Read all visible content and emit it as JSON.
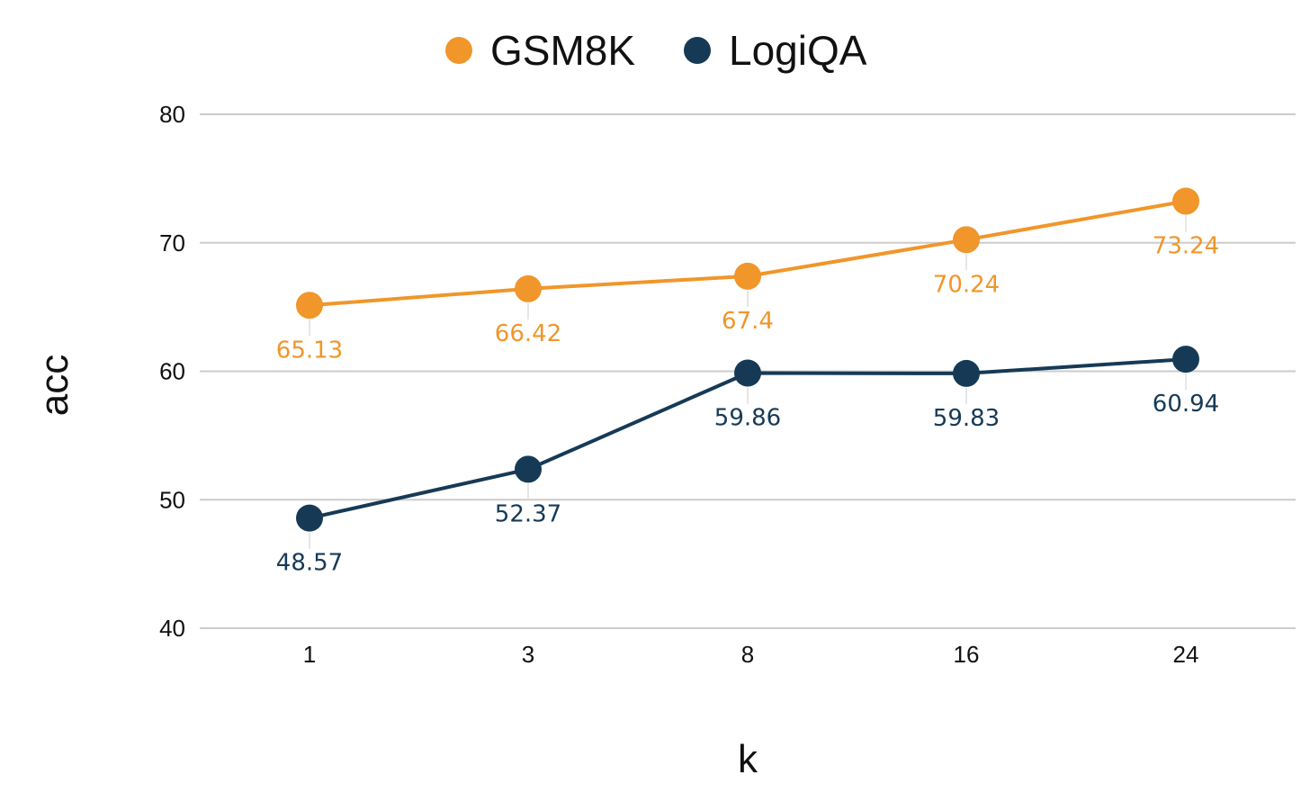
{
  "chart_data": {
    "type": "line",
    "title": "",
    "xlabel": "k",
    "ylabel": "acc",
    "categories": [
      "1",
      "3",
      "8",
      "16",
      "24"
    ],
    "ylim": [
      40,
      80
    ],
    "yticks": [
      40,
      50,
      60,
      70,
      80
    ],
    "grid": true,
    "legend_position": "top-center",
    "series": [
      {
        "name": "GSM8K",
        "color": "#F0962A",
        "values": [
          65.13,
          66.42,
          67.4,
          70.24,
          73.24
        ],
        "labels": [
          "65.13",
          "66.42",
          "67.4",
          "70.24",
          "73.24"
        ]
      },
      {
        "name": "LogiQA",
        "color": "#163A56",
        "values": [
          48.57,
          52.37,
          59.86,
          59.83,
          60.94
        ],
        "labels": [
          "48.57",
          "52.37",
          "59.86",
          "59.83",
          "60.94"
        ]
      }
    ]
  }
}
